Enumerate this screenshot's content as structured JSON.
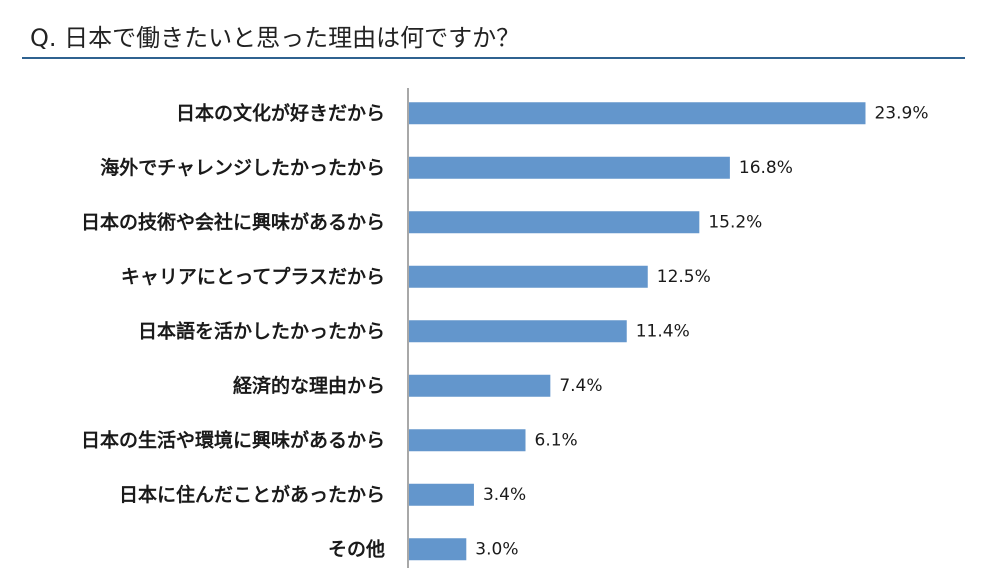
{
  "chart_data": {
    "type": "bar",
    "orientation": "horizontal",
    "title": "Q. 日本で働きたいと思った理由は何ですか？",
    "categories": [
      "日本の文化が好きだから",
      "海外でチャレンジしたかったから",
      "日本の技術や会社に興味があるから",
      "キャリアにとってプラスだから",
      "日本語を活かしたかったから",
      "経済的な理由から",
      "日本の生活や環境に興味があるから",
      "日本に住んだことがあったから",
      "その他"
    ],
    "values": [
      23.9,
      16.8,
      15.2,
      12.5,
      11.4,
      7.4,
      6.1,
      3.4,
      3.0
    ],
    "value_labels": [
      "23.9%",
      "16.8%",
      "15.2%",
      "12.5%",
      "11.4%",
      "7.4%",
      "6.1%",
      "3.4%",
      "3.0%"
    ],
    "unit": "%",
    "bar_color": "#6396cc",
    "grid": false,
    "legend": "none"
  }
}
